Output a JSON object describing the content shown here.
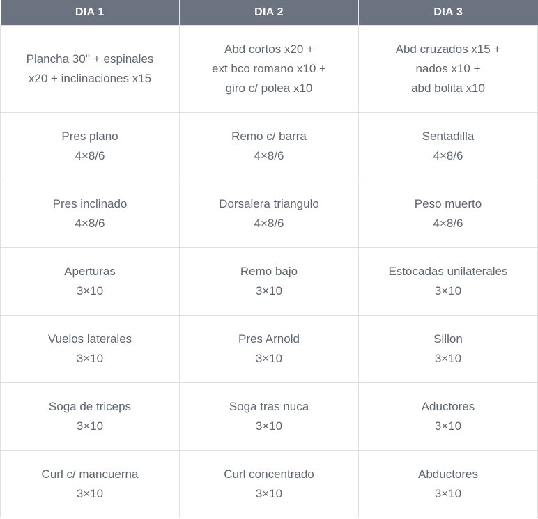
{
  "headers": [
    "DIA 1",
    "DIA 2",
    "DIA 3"
  ],
  "rows": [
    [
      [
        "Plancha 30'' + espinales",
        "x20 + inclinaciones x15"
      ],
      [
        "Abd cortos x20 +",
        "ext bco romano x10 +",
        "giro c/ polea x10"
      ],
      [
        "Abd cruzados x15 +",
        "nados x10 +",
        "abd bolita x10"
      ]
    ],
    [
      [
        "Pres plano",
        "4×8/6"
      ],
      [
        "Remo c/ barra",
        "4×8/6"
      ],
      [
        "Sentadilla",
        "4×8/6"
      ]
    ],
    [
      [
        "Pres inclinado",
        "4×8/6"
      ],
      [
        "Dorsalera triangulo",
        "4×8/6"
      ],
      [
        "Peso muerto",
        "4×8/6"
      ]
    ],
    [
      [
        "Aperturas",
        "3×10"
      ],
      [
        "Remo bajo",
        "3×10"
      ],
      [
        "Estocadas unilaterales",
        "3×10"
      ]
    ],
    [
      [
        "Vuelos laterales",
        "3×10"
      ],
      [
        "Pres Arnold",
        "3×10"
      ],
      [
        "Sillon",
        "3×10"
      ]
    ],
    [
      [
        "Soga de triceps",
        "3×10"
      ],
      [
        "Soga tras nuca",
        "3×10"
      ],
      [
        "Aductores",
        "3×10"
      ]
    ],
    [
      [
        "Curl c/ mancuerna",
        "3×10"
      ],
      [
        "Curl concentrado",
        "3×10"
      ],
      [
        "Abductores",
        "3×10"
      ]
    ]
  ]
}
